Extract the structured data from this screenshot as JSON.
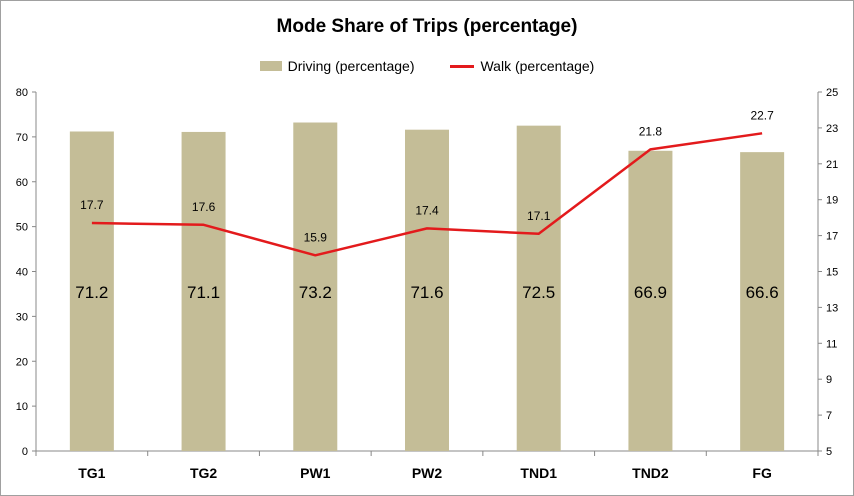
{
  "chart_data": {
    "type": "bar",
    "title": "Mode Share of Trips (percentage)",
    "categories": [
      "TG1",
      "TG2",
      "PW1",
      "PW2",
      "TND1",
      "TND2",
      "FG"
    ],
    "series": [
      {
        "name": "Driving (percentage)",
        "type": "bar",
        "axis": "left",
        "values": [
          71.2,
          71.1,
          73.2,
          71.6,
          72.5,
          66.9,
          66.6
        ],
        "color": "#c4bd97"
      },
      {
        "name": "Walk (percentage)",
        "type": "line",
        "axis": "right",
        "values": [
          17.7,
          17.6,
          15.9,
          17.4,
          17.1,
          21.8,
          22.7
        ],
        "color": "#e31a1c"
      }
    ],
    "y_left": {
      "range": [
        0,
        80
      ],
      "ticks": [
        "0",
        "10",
        "20",
        "30",
        "40",
        "50",
        "60",
        "70",
        "80"
      ]
    },
    "y_right": {
      "range": [
        5,
        25
      ],
      "ticks": [
        "5",
        "7",
        "9",
        "11",
        "13",
        "15",
        "17",
        "19",
        "21",
        "23",
        "25"
      ]
    },
    "grid": false,
    "legend_position": "top-center"
  }
}
